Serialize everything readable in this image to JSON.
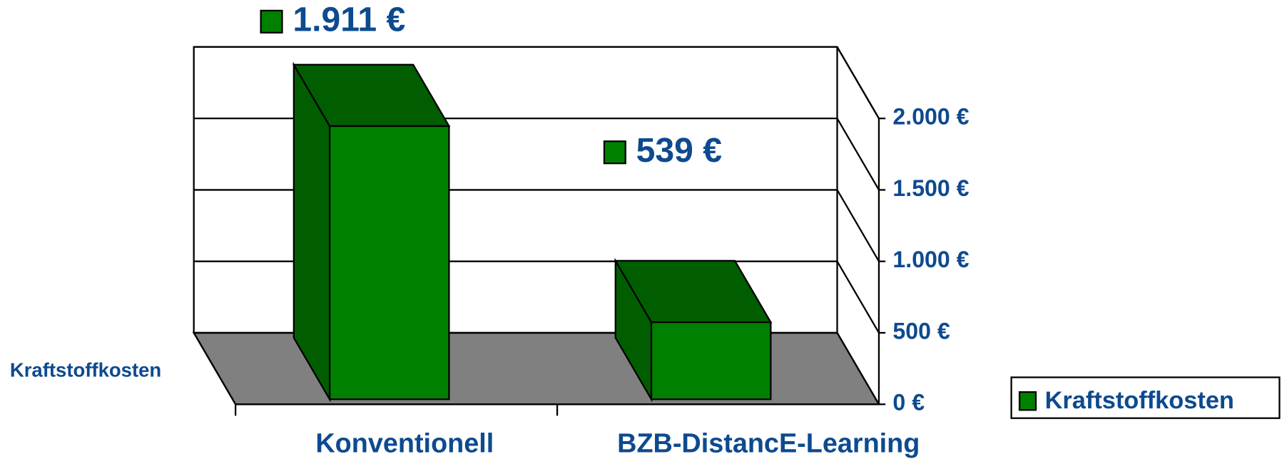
{
  "chart_data": {
    "type": "bar3d",
    "categories": [
      "Konventionell",
      "BZB-DistancE-Learning"
    ],
    "series": [
      {
        "name": "Kraftstoffkosten",
        "color": "#008000",
        "values": [
          1911,
          539
        ],
        "value_labels": [
          "1.911 €",
          "539 €"
        ]
      }
    ],
    "depth_label": "Kraftstoffkosten",
    "ylim": [
      0,
      2000
    ],
    "yticks": [
      {
        "value": 0,
        "label": "0 €"
      },
      {
        "value": 500,
        "label": "500 €"
      },
      {
        "value": 1000,
        "label": "1.000 €"
      },
      {
        "value": 1500,
        "label": "1.500 €"
      },
      {
        "value": 2000,
        "label": "2.000 €"
      }
    ],
    "grid": true,
    "legend": "right",
    "floor_color": "#808080"
  }
}
